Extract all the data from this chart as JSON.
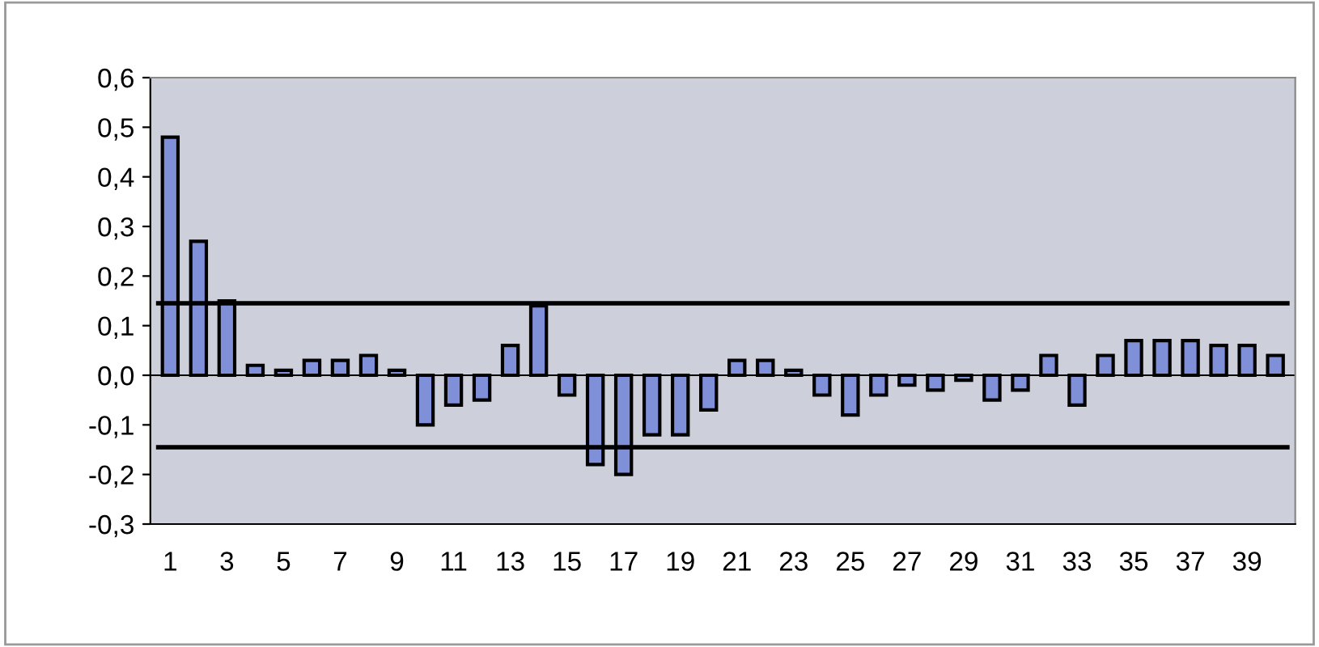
{
  "chart_data": {
    "type": "bar",
    "categories": [
      "1",
      null,
      "3",
      null,
      "5",
      null,
      "7",
      null,
      "9",
      null,
      "11",
      null,
      "13",
      null,
      "15",
      null,
      "17",
      null,
      "19",
      null,
      "21",
      null,
      "23",
      null,
      "25",
      null,
      "27",
      null,
      "29",
      null,
      "31",
      null,
      "33",
      null,
      "35",
      null,
      "37",
      null,
      "39",
      null
    ],
    "values": [
      0.48,
      0.27,
      0.15,
      0.02,
      0.01,
      0.03,
      0.03,
      0.04,
      0.01,
      -0.1,
      -0.06,
      -0.05,
      0.06,
      0.14,
      -0.04,
      -0.18,
      -0.2,
      -0.12,
      -0.12,
      -0.07,
      0.03,
      0.03,
      0.01,
      -0.04,
      -0.08,
      -0.04,
      -0.02,
      -0.03,
      -0.01,
      -0.05,
      -0.03,
      0.04,
      -0.06,
      0.04,
      0.07,
      0.07,
      0.07,
      0.06,
      0.06,
      0.04
    ],
    "color": "#8090d8",
    "ylim": [
      -0.3,
      0.6
    ],
    "yticks": [
      {
        "value": -0.3,
        "label": "-0,3"
      },
      {
        "value": -0.2,
        "label": "-0,2"
      },
      {
        "value": -0.1,
        "label": "-0,1"
      },
      {
        "value": 0.0,
        "label": "0,0"
      },
      {
        "value": 0.1,
        "label": "0,1"
      },
      {
        "value": 0.2,
        "label": "0,2"
      },
      {
        "value": 0.3,
        "label": "0,3"
      },
      {
        "value": 0.4,
        "label": "0,4"
      },
      {
        "value": 0.5,
        "label": "0,5"
      },
      {
        "value": 0.6,
        "label": "0,6"
      }
    ],
    "ref_lines": [
      {
        "axis": "y",
        "value": 0.145,
        "color": "#000000"
      },
      {
        "axis": "y",
        "value": -0.145,
        "color": "#000000"
      }
    ],
    "legend": false
  }
}
